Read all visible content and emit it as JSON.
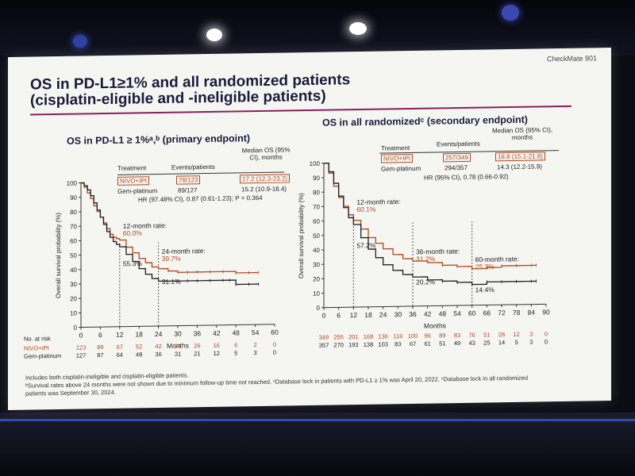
{
  "slide": {
    "brand": "CheckMate 901",
    "title_line1": "OS in PD-L1≥1% and all randomized patients",
    "title_line2": "(cisplatin-eligible and -ineligible patients)",
    "footnotes": [
      "Includes both cisplatin-ineligible and cisplatin-eligible patients.",
      "ᵇSurvival rates above 24 months were not shown due to minimum follow-up time not reached. ᶜDatabase lock in patients with PD-L1 ≥ 1% was April 20, 2022. ᶜDatabase lock in all randomized",
      "patients was September 30, 2024."
    ]
  },
  "colors": {
    "nivo_ipi": "#b24a1e",
    "gem_platinum": "#222222",
    "accent_rule": "#8a1f5c"
  },
  "chart_data": [
    {
      "type": "line",
      "subtitle": "OS in PD-L1 ≥ 1%ᵃ,ᵇ (primary endpoint)",
      "table": {
        "headers": [
          "Treatment",
          "Events/patients",
          "Median OS (95% CI), months"
        ],
        "rows": [
          [
            "NIVO+IPI",
            "78/123",
            "17.2 (12.3-23.2)"
          ],
          [
            "Gem-platinum",
            "89/127",
            "15.2 (10.9-18.4)"
          ]
        ],
        "hr": "HR (97.48% CI), 0.87 (0.61-1.23); P = 0.364"
      },
      "ylabel": "Overall survival probability (%)",
      "xlabel": "Months",
      "xlim": [
        0,
        60
      ],
      "ylim": [
        0,
        100
      ],
      "xticks": [
        0,
        6,
        12,
        18,
        24,
        30,
        36,
        42,
        48,
        54,
        60
      ],
      "yticks": [
        0,
        10,
        20,
        30,
        40,
        50,
        60,
        70,
        80,
        90,
        100
      ],
      "annotations": [
        {
          "text": "12-month rate:",
          "x": 12,
          "y": 68
        },
        {
          "text": "60.0%",
          "x": 12,
          "y": 63,
          "series": "NIVO+IPI"
        },
        {
          "text": "55.3%",
          "x": 12,
          "y": 42
        },
        {
          "text": "24-month rate:",
          "x": 24,
          "y": 50
        },
        {
          "text": "39.7%",
          "x": 24,
          "y": 45,
          "series": "NIVO+IPI"
        },
        {
          "text": "31.1%",
          "x": 24,
          "y": 29
        }
      ],
      "series": [
        {
          "name": "NIVO+IPI",
          "x": [
            0,
            1,
            2,
            3,
            4,
            5,
            6,
            7,
            8,
            9,
            10,
            11,
            12,
            14,
            16,
            18,
            20,
            22,
            24,
            27,
            30,
            33,
            36,
            40,
            44,
            48,
            52,
            55
          ],
          "y": [
            100,
            97,
            93,
            89,
            84,
            80,
            76,
            72,
            68,
            64,
            62,
            61,
            60,
            55,
            51,
            47,
            44,
            41,
            39.7,
            38,
            37,
            37,
            37,
            37,
            37,
            36,
            36,
            36
          ]
        },
        {
          "name": "Gem-platinum",
          "x": [
            0,
            1,
            2,
            3,
            4,
            5,
            6,
            7,
            8,
            9,
            10,
            11,
            12,
            14,
            16,
            18,
            20,
            22,
            24,
            27,
            30,
            33,
            36,
            40,
            44,
            46,
            48,
            52,
            55
          ],
          "y": [
            100,
            98,
            95,
            91,
            86,
            81,
            76,
            71,
            66,
            62,
            59,
            57,
            55.3,
            50,
            45,
            40,
            36,
            33,
            31.1,
            31,
            31,
            31,
            31,
            31,
            31,
            31,
            28,
            28,
            28
          ]
        }
      ],
      "risk_table": {
        "label": "No. at risk",
        "rows": [
          {
            "name": "NIVO+IPI",
            "values": [
              "123",
              "89",
              "67",
              "52",
              "42",
              "34",
              "26",
              "16",
              "6",
              "2",
              "0"
            ]
          },
          {
            "name": "Gem-platinum",
            "values": [
              "127",
              "87",
              "64",
              "48",
              "36",
              "31",
              "21",
              "12",
              "5",
              "3",
              "0"
            ]
          }
        ]
      }
    },
    {
      "type": "line",
      "subtitle": "OS in all randomizedᶜ (secondary endpoint)",
      "table": {
        "headers": [
          "Treatment",
          "Events/patients",
          "Median OS (95% CI), months"
        ],
        "rows": [
          [
            "NIVO+IPI",
            "257/349",
            "18.8 (15.1-21.8)"
          ],
          [
            "Gem-platinum",
            "294/357",
            "14.3 (12.2-15.9)"
          ]
        ],
        "hr": "HR (95% CI), 0.78 (0.66-0.92)"
      },
      "ylabel": "Overall survival probability (%)",
      "xlabel": "Months",
      "xlim": [
        0,
        90
      ],
      "ylim": [
        0,
        100
      ],
      "xticks": [
        0,
        6,
        12,
        18,
        24,
        30,
        36,
        42,
        48,
        54,
        60,
        66,
        72,
        78,
        84,
        90
      ],
      "yticks": [
        0,
        10,
        20,
        30,
        40,
        50,
        60,
        70,
        80,
        90,
        100
      ],
      "annotations": [
        {
          "text": "12-month rate:",
          "x": 12,
          "y": 71
        },
        {
          "text": "60.1%",
          "x": 12,
          "y": 66,
          "series": "NIVO+IPI"
        },
        {
          "text": "57.2%",
          "x": 12,
          "y": 41
        },
        {
          "text": "36-month rate:",
          "x": 36,
          "y": 36
        },
        {
          "text": "31.2%",
          "x": 36,
          "y": 31,
          "series": "NIVO+IPI"
        },
        {
          "text": "20.2%",
          "x": 36,
          "y": 15
        },
        {
          "text": "60-month rate:",
          "x": 60,
          "y": 30
        },
        {
          "text": "25.3%",
          "x": 60,
          "y": 25,
          "series": "NIVO+IPI"
        },
        {
          "text": "14.4%",
          "x": 60,
          "y": 9
        }
      ],
      "series": [
        {
          "name": "NIVO+IPI",
          "x": [
            0,
            2,
            4,
            6,
            8,
            10,
            12,
            15,
            18,
            21,
            24,
            28,
            32,
            36,
            42,
            48,
            54,
            60,
            66,
            72,
            78,
            84,
            86
          ],
          "y": [
            100,
            93,
            84,
            76,
            70,
            64,
            60.1,
            54,
            48,
            44,
            40,
            36,
            33,
            31.2,
            30,
            28,
            27,
            25.3,
            26,
            27,
            27,
            27,
            27
          ]
        },
        {
          "name": "Gem-platinum",
          "x": [
            0,
            2,
            4,
            6,
            8,
            10,
            12,
            15,
            18,
            21,
            24,
            28,
            32,
            36,
            42,
            48,
            54,
            60,
            66,
            72,
            78,
            84,
            86
          ],
          "y": [
            100,
            94,
            86,
            77,
            69,
            62,
            57.2,
            48,
            40,
            34,
            29,
            25,
            22,
            20.2,
            18,
            17,
            16,
            14.4,
            16,
            16,
            16,
            16,
            16
          ]
        }
      ],
      "risk_table": {
        "rows": [
          {
            "name": "NIVO+IPI",
            "values": [
              "349",
              "255",
              "201",
              "168",
              "136",
              "116",
              "100",
              "96",
              "89",
              "83",
              "76",
              "51",
              "28",
              "12",
              "3",
              "0"
            ]
          },
          {
            "name": "Gem-platinum",
            "values": [
              "357",
              "270",
              "193",
              "138",
              "103",
              "83",
              "67",
              "61",
              "51",
              "49",
              "43",
              "25",
              "14",
              "5",
              "3",
              "0"
            ]
          }
        ]
      }
    }
  ]
}
